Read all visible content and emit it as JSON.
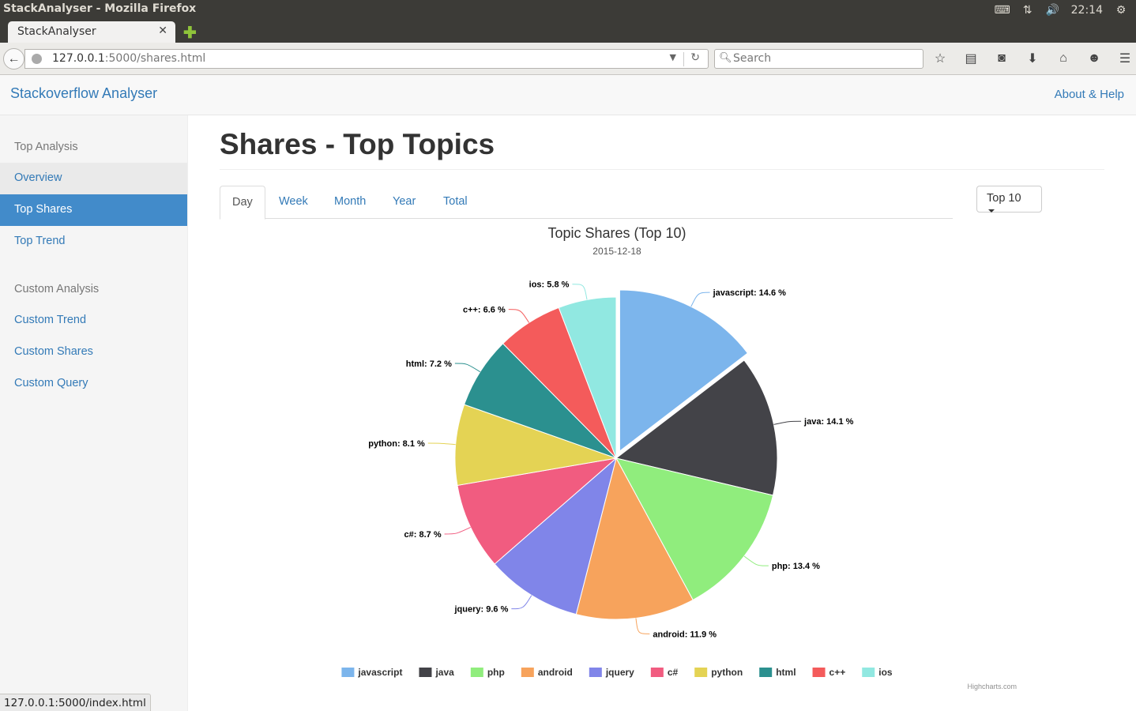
{
  "os": {
    "window_title": "StackAnalyser - Mozilla Firefox",
    "clock": "22:14",
    "tray_icons": [
      "keyboard-icon",
      "network-icon",
      "volume-icon",
      "power-icon"
    ]
  },
  "browser": {
    "tab_title": "StackAnalyser",
    "url_host": "127.0.0.1",
    "url_path": ":5000/shares.html",
    "search_placeholder": "Search",
    "toolbar_icons": [
      "bookmark-star-icon",
      "reading-list-icon",
      "pocket-icon",
      "download-icon",
      "home-icon",
      "chat-icon",
      "menu-icon"
    ],
    "status_url": "127.0.0.1:5000/index.html"
  },
  "header": {
    "brand": "Stackoverflow Analyser",
    "about": "About & Help"
  },
  "sidebar": {
    "groups": [
      {
        "title": "Top Analysis",
        "items": [
          {
            "label": "Overview",
            "state": "hover"
          },
          {
            "label": "Top Shares",
            "state": "active"
          },
          {
            "label": "Top Trend",
            "state": "normal"
          }
        ]
      },
      {
        "title": "Custom Analysis",
        "items": [
          {
            "label": "Custom Trend",
            "state": "normal"
          },
          {
            "label": "Custom Shares",
            "state": "normal"
          },
          {
            "label": "Custom Query",
            "state": "normal"
          }
        ]
      }
    ]
  },
  "main": {
    "title": "Shares - Top Topics",
    "tabs": [
      "Day",
      "Week",
      "Month",
      "Year",
      "Total"
    ],
    "active_tab": "Day",
    "top_select": "Top 10"
  },
  "chart_data": {
    "type": "pie",
    "title": "Topic Shares (Top 10)",
    "subtitle": "2015-12-18",
    "credits": "Highcharts.com",
    "legend_position": "bottom",
    "label_format": "{name}: {value} %",
    "slices": [
      {
        "name": "javascript",
        "value": 14.6,
        "color": "#7cb5ec",
        "sliced": true
      },
      {
        "name": "java",
        "value": 14.1,
        "color": "#434348"
      },
      {
        "name": "php",
        "value": 13.4,
        "color": "#90ed7d"
      },
      {
        "name": "android",
        "value": 11.9,
        "color": "#f7a35c"
      },
      {
        "name": "jquery",
        "value": 9.6,
        "color": "#8085e9"
      },
      {
        "name": "c#",
        "value": 8.7,
        "color": "#f15c80"
      },
      {
        "name": "python",
        "value": 8.1,
        "color": "#e4d354"
      },
      {
        "name": "html",
        "value": 7.2,
        "color": "#2b908f"
      },
      {
        "name": "c++",
        "value": 6.6,
        "color": "#f45b5b"
      },
      {
        "name": "ios",
        "value": 5.8,
        "color": "#91e8e1"
      }
    ]
  }
}
